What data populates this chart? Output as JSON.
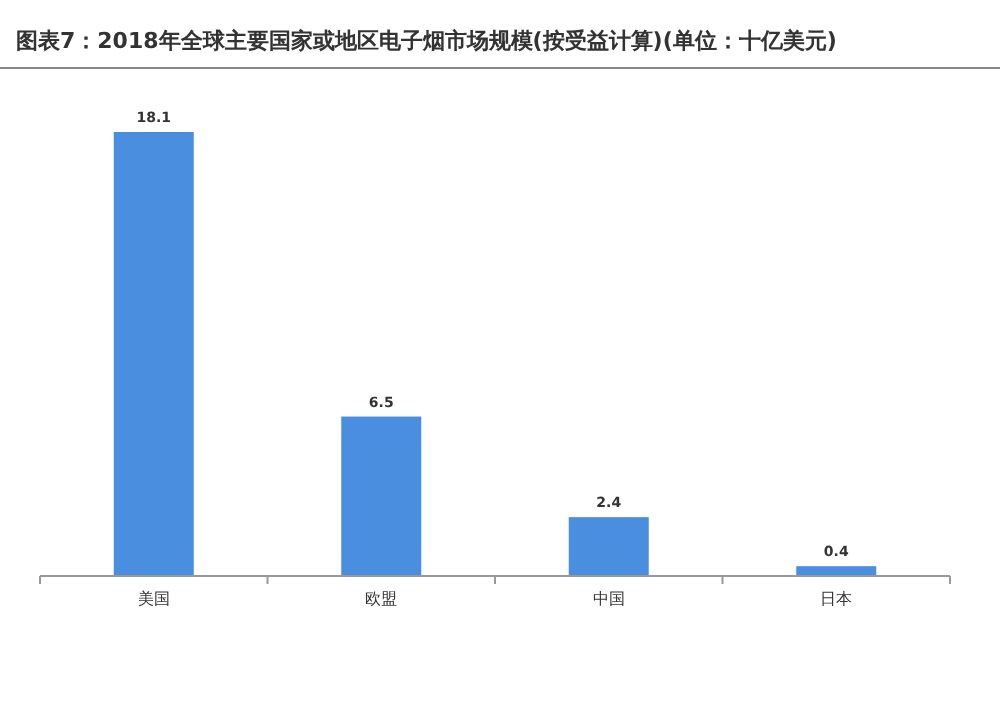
{
  "chart_data": {
    "type": "bar",
    "title": "图表7：2018年全球主要国家或地区电子烟市场规模(按受益计算)(单位：十亿美元)",
    "categories": [
      "美国",
      "欧盟",
      "中国",
      "日本"
    ],
    "values": [
      18.1,
      6.5,
      2.4,
      0.4
    ],
    "color": "#4a8fdf",
    "data_labels": true
  }
}
